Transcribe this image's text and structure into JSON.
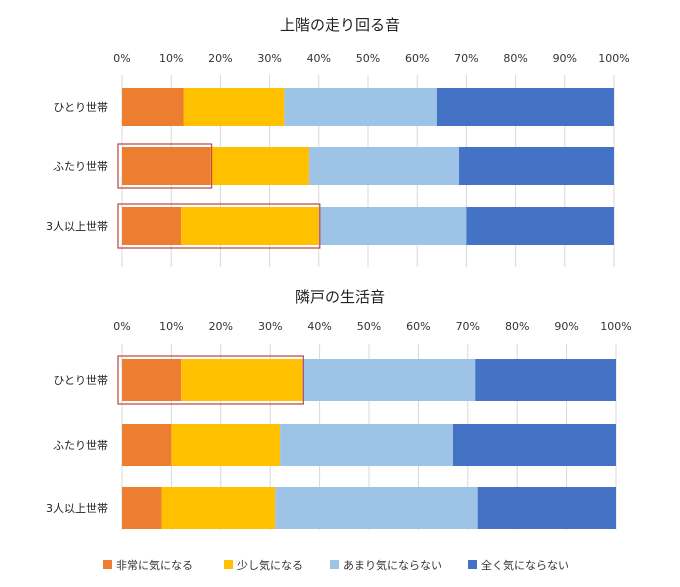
{
  "colors": {
    "series": [
      "#ED7D31",
      "#FFC000",
      "#9DC3E6",
      "#4472C4"
    ],
    "highlight": "#C0504D",
    "gridline": "#D9D9D9"
  },
  "legend": {
    "position": "bottom",
    "items": [
      "非常に気になる",
      "少し気になる",
      "あまり気にならない",
      "全く気にならない"
    ]
  },
  "chart_data": [
    {
      "type": "bar",
      "orientation": "horizontal",
      "stacked": "percent",
      "title": "上階の走り回る音",
      "categories": [
        "ひとり世帯",
        "ふたり世帯",
        "3人以上世帯"
      ],
      "xlim": [
        0,
        100
      ],
      "x_ticks": [
        "0%",
        "10%",
        "20%",
        "30%",
        "40%",
        "50%",
        "60%",
        "70%",
        "80%",
        "90%",
        "100%"
      ],
      "grid": true,
      "series": [
        {
          "name": "非常に気になる",
          "values": [
            12.5,
            18,
            12
          ]
        },
        {
          "name": "少し気になる",
          "values": [
            20.5,
            20,
            28
          ]
        },
        {
          "name": "あまり気にならない",
          "values": [
            31,
            30.5,
            30
          ]
        },
        {
          "name": "全く気にならない",
          "values": [
            36,
            31.5,
            30
          ]
        }
      ],
      "highlights": [
        {
          "category": "ふたり世帯",
          "series": [
            "非常に気になる"
          ]
        },
        {
          "category": "3人以上世帯",
          "series": [
            "非常に気になる",
            "少し気になる"
          ]
        }
      ]
    },
    {
      "type": "bar",
      "orientation": "horizontal",
      "stacked": "percent",
      "title": "隣戸の生活音",
      "categories": [
        "ひとり世帯",
        "ふたり世帯",
        "3人以上世帯"
      ],
      "xlim": [
        0,
        100
      ],
      "x_ticks": [
        "0%",
        "10%",
        "20%",
        "30%",
        "40%",
        "50%",
        "60%",
        "70%",
        "80%",
        "90%",
        "100%"
      ],
      "grid": true,
      "series": [
        {
          "name": "非常に気になる",
          "values": [
            12,
            10,
            8
          ]
        },
        {
          "name": "少し気になる",
          "values": [
            24.5,
            22,
            23
          ]
        },
        {
          "name": "あまり気にならない",
          "values": [
            35,
            35,
            41
          ]
        },
        {
          "name": "全く気にならない",
          "values": [
            28.5,
            33,
            28
          ]
        }
      ],
      "highlights": [
        {
          "category": "ひとり世帯",
          "series": [
            "非常に気になる",
            "少し気になる"
          ]
        }
      ]
    }
  ]
}
